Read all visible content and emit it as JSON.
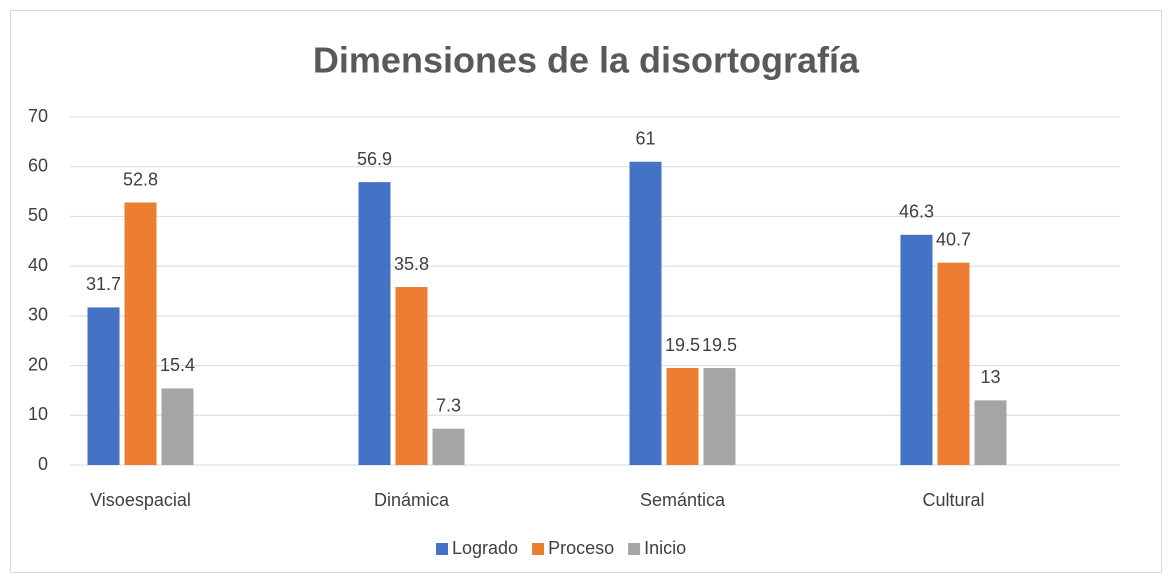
{
  "chart_data": {
    "type": "bar",
    "title": "Dimensiones de la disortografía",
    "categories": [
      "Visoespacial",
      "Dinámica",
      "Semántica",
      "Cultural"
    ],
    "series": [
      {
        "name": "Logrado",
        "color": "#4472c4",
        "values": [
          31.7,
          56.9,
          61,
          46.3
        ]
      },
      {
        "name": "Proceso",
        "color": "#ed7d31",
        "values": [
          52.8,
          35.8,
          19.5,
          40.7
        ]
      },
      {
        "name": "Inicio",
        "color": "#a5a5a5",
        "values": [
          15.4,
          7.3,
          19.5,
          13
        ]
      }
    ],
    "ylim": [
      0,
      70
    ],
    "yticks": [
      0,
      10,
      20,
      30,
      40,
      50,
      60,
      70
    ],
    "grid": true,
    "legend": "bottom"
  }
}
